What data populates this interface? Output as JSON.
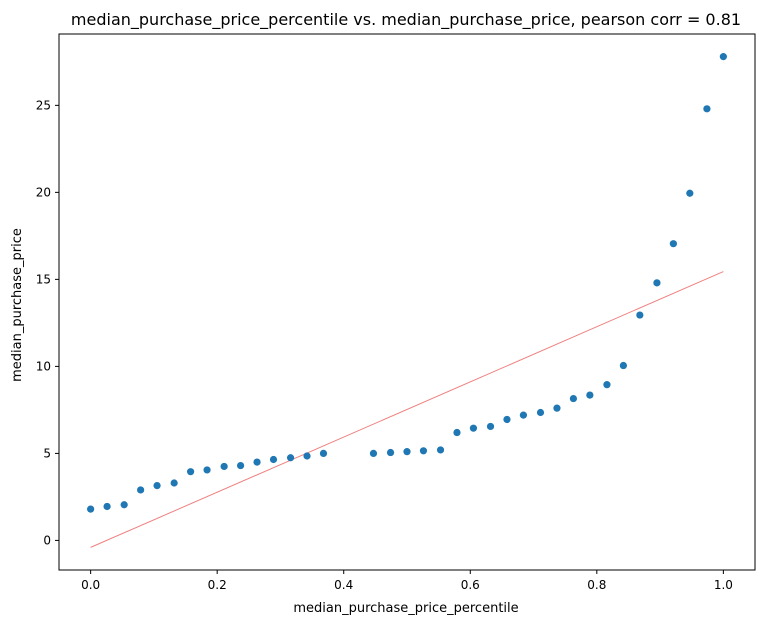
{
  "chart_data": {
    "type": "scatter",
    "title": "median_purchase_price_percentile vs. median_purchase_price, pearson corr = 0.81",
    "xlabel": "median_purchase_price_percentile",
    "ylabel": "median_purchase_price",
    "xlim": [
      -0.05,
      1.05
    ],
    "ylim": [
      -1.7,
      29.1
    ],
    "xticks": [
      0.0,
      0.2,
      0.4,
      0.6,
      0.8,
      1.0
    ],
    "xtick_labels": [
      "0.0",
      "0.2",
      "0.4",
      "0.6",
      "0.8",
      "1.0"
    ],
    "yticks": [
      0,
      5,
      10,
      15,
      20,
      25
    ],
    "ytick_labels": [
      "0",
      "5",
      "10",
      "15",
      "20",
      "25"
    ],
    "grid": false,
    "colors": {
      "points": "#1f77b4",
      "fit_line": "#f08080"
    },
    "series": [
      {
        "x": [
          0.0,
          0.026,
          0.053,
          0.079,
          0.105,
          0.132,
          0.158,
          0.184,
          0.211,
          0.237,
          0.263,
          0.289,
          0.316,
          0.342,
          0.368,
          0.447,
          0.474,
          0.5,
          0.526,
          0.553,
          0.579,
          0.605,
          0.632,
          0.658,
          0.684,
          0.711,
          0.737,
          0.763,
          0.789,
          0.816,
          0.842,
          0.868,
          0.895,
          0.921,
          0.947,
          0.974,
          1.0
        ],
        "y": [
          1.8,
          1.95,
          2.05,
          2.9,
          3.15,
          3.3,
          3.95,
          4.05,
          4.25,
          4.3,
          4.5,
          4.65,
          4.75,
          4.85,
          5.0,
          5.0,
          5.05,
          5.1,
          5.15,
          5.2,
          6.2,
          6.45,
          6.55,
          6.95,
          7.2,
          7.35,
          7.6,
          8.15,
          8.35,
          8.95,
          10.05,
          12.95,
          14.8,
          17.05,
          19.95,
          24.8,
          27.8
        ]
      }
    ],
    "fit_line": {
      "x": [
        0.0,
        1.0
      ],
      "y": [
        -0.4,
        15.45
      ]
    }
  }
}
